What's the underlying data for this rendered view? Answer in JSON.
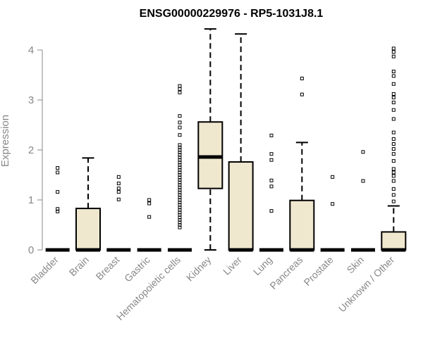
{
  "chart_data": {
    "type": "boxplot",
    "title": "ENSG00000229976 - RP5-1031J8.1",
    "xlabel": "",
    "ylabel": "Expression",
    "ylim": [
      0,
      4.45
    ],
    "yticks": [
      "0",
      "1",
      "2",
      "3",
      "4"
    ],
    "box_color": "#efe8cf",
    "categories": [
      "Bladder",
      "Brain",
      "Breast",
      "Gastric",
      "Hematopoietic cells",
      "Kidney",
      "Liver",
      "Lung",
      "Pancreas",
      "Prostate",
      "Skin",
      "Unknown / Other"
    ],
    "boxes": [
      {
        "q1": 0,
        "median": 0,
        "q3": 0,
        "whisker_low": 0,
        "whisker_high": 0,
        "outliers": [
          0.77,
          0.82,
          1.16,
          1.55,
          1.64
        ]
      },
      {
        "q1": 0,
        "median": 0,
        "q3": 0.83,
        "whisker_low": 0,
        "whisker_high": 1.84,
        "outliers": []
      },
      {
        "q1": 0,
        "median": 0,
        "q3": 0,
        "whisker_low": 0,
        "whisker_high": 0,
        "outliers": [
          1.01,
          1.16,
          1.23,
          1.33,
          1.46
        ]
      },
      {
        "q1": 0,
        "median": 0,
        "q3": 0,
        "whisker_low": 0,
        "whisker_high": 0,
        "outliers": [
          0.66,
          0.93,
          1.0
        ]
      },
      {
        "q1": 0,
        "median": 0,
        "q3": 0,
        "whisker_low": 0,
        "whisker_high": 0,
        "outliers": [
          0.45,
          0.5,
          0.55,
          0.6,
          0.65,
          0.7,
          0.75,
          0.8,
          0.85,
          0.9,
          0.95,
          1.0,
          1.05,
          1.1,
          1.15,
          1.2,
          1.25,
          1.3,
          1.35,
          1.4,
          1.45,
          1.5,
          1.55,
          1.6,
          1.65,
          1.7,
          1.75,
          1.8,
          1.85,
          1.9,
          1.95,
          2.0,
          2.05,
          2.1,
          2.3,
          2.45,
          2.55,
          2.68,
          3.15,
          3.22,
          3.28
        ]
      },
      {
        "q1": 1.23,
        "median": 1.86,
        "q3": 2.56,
        "whisker_low": 0,
        "whisker_high": 4.42,
        "outliers": []
      },
      {
        "q1": 0,
        "median": 0,
        "q3": 1.76,
        "whisker_low": 0,
        "whisker_high": 4.32,
        "outliers": []
      },
      {
        "q1": 0,
        "median": 0,
        "q3": 0,
        "whisker_low": 0,
        "whisker_high": 0,
        "outliers": [
          0.78,
          1.27,
          1.39,
          1.8,
          1.92,
          2.29
        ]
      },
      {
        "q1": 0,
        "median": 0,
        "q3": 0.99,
        "whisker_low": 0,
        "whisker_high": 2.15,
        "outliers": [
          3.11,
          3.43
        ]
      },
      {
        "q1": 0,
        "median": 0,
        "q3": 0,
        "whisker_low": 0,
        "whisker_high": 0,
        "outliers": [
          0.92,
          1.46
        ]
      },
      {
        "q1": 0,
        "median": 0,
        "q3": 0,
        "whisker_low": 0,
        "whisker_high": 0,
        "outliers": [
          1.38,
          1.96
        ]
      },
      {
        "q1": 0,
        "median": 0,
        "q3": 0.36,
        "whisker_low": 0,
        "whisker_high": 0.88,
        "outliers": [
          0.97,
          1.1,
          1.22,
          1.38,
          1.48,
          1.55,
          1.62,
          1.78,
          1.92,
          2.02,
          2.12,
          2.22,
          2.35,
          2.62,
          2.8,
          2.95,
          3.05,
          3.12,
          3.32,
          3.48,
          3.57,
          3.87,
          3.96,
          4.03
        ]
      }
    ]
  }
}
